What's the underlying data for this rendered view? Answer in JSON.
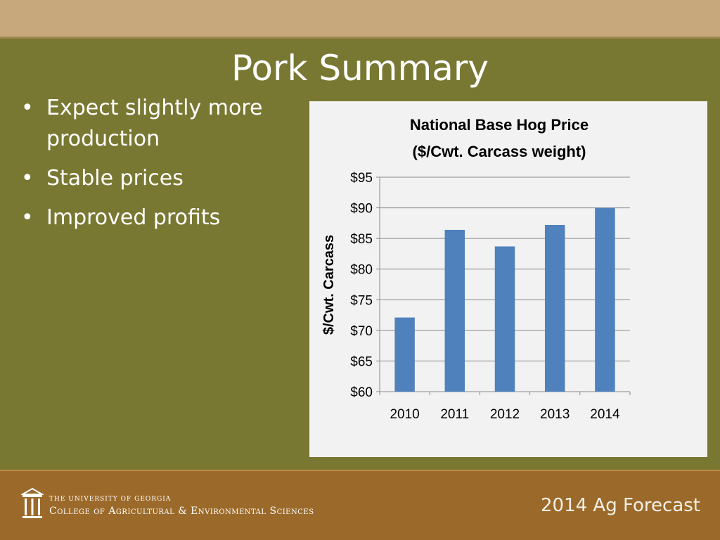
{
  "slide": {
    "title": "Pork Summary",
    "bullets": [
      "Expect slightly more production",
      "Stable prices",
      "Improved profits"
    ],
    "bullet_symbol": "•"
  },
  "footer": {
    "university": "THE UNIVERSITY OF GEORGIA",
    "college": "College of Agricultural & Environmental Sciences",
    "forecast": "2014 Ag Forecast"
  },
  "chart_data": {
    "type": "bar",
    "title": [
      "National Base Hog Price",
      "($/Cwt. Carcass weight)"
    ],
    "ylabel": "$/Cwt. Carcass",
    "xlabel": "",
    "categories": [
      "2010",
      "2011",
      "2012",
      "2013",
      "2014"
    ],
    "values": [
      72.1,
      86.4,
      83.7,
      87.2,
      90.0
    ],
    "ylim": [
      60,
      95
    ],
    "yticks": [
      "$60",
      "$65",
      "$70",
      "$75",
      "$80",
      "$85",
      "$90",
      "$95"
    ],
    "ytick_values": [
      60,
      65,
      70,
      75,
      80,
      85,
      90,
      95
    ],
    "grid": true,
    "bar_color": "#4f81bd"
  },
  "colors": {
    "background": "#787832",
    "top_band": "#c7a87c",
    "footer": "#9b6a2a",
    "chart_panel": "#f2f2f2"
  }
}
